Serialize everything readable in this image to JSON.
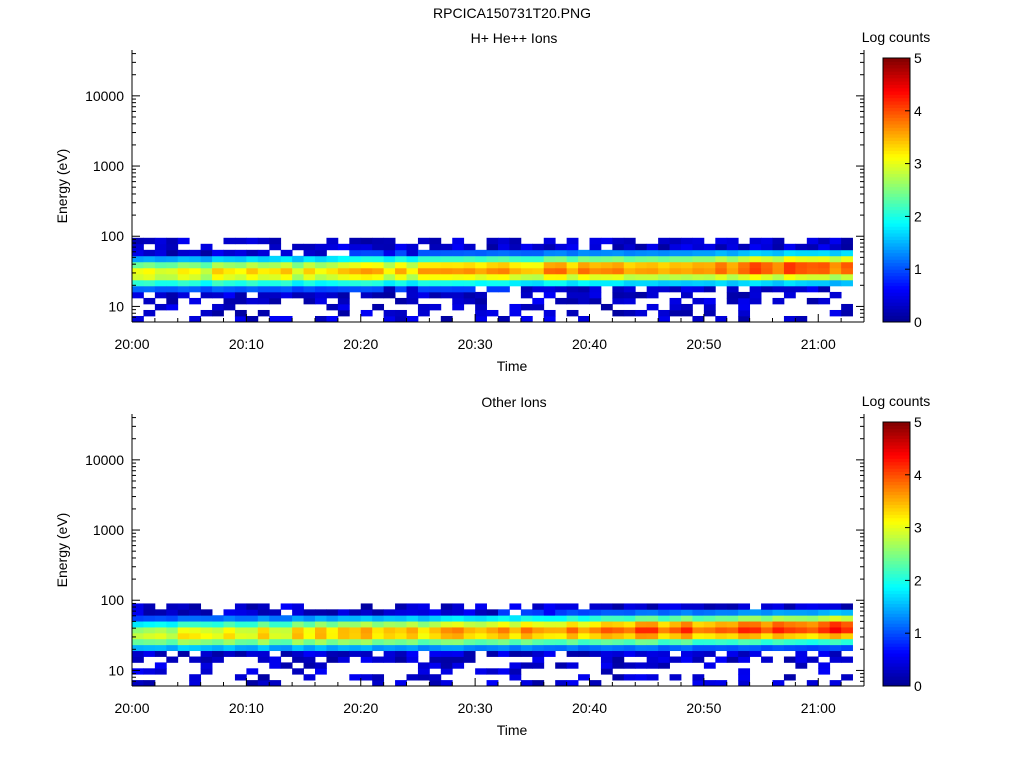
{
  "title": "RPCICA150731T20.PNG",
  "chart_data": [
    {
      "type": "heatmap",
      "title": "H+ He++ Ions",
      "xlabel": "Time",
      "ylabel": "Energy (eV)",
      "x_ticks": [
        "20:00",
        "20:10",
        "20:20",
        "20:30",
        "20:40",
        "20:50",
        "21:00"
      ],
      "y_ticks": [
        "10",
        "100",
        "1000",
        "10000"
      ],
      "y_scale": "log",
      "ylim": [
        6,
        45000
      ],
      "xlim": [
        "20:00",
        "21:04"
      ],
      "colorbar": {
        "label": "Log counts",
        "ticks": [
          "0",
          "1",
          "2",
          "3",
          "4",
          "5"
        ],
        "range": [
          0,
          5
        ]
      },
      "band_center_ev": [
        30,
        36
      ],
      "band_top_ev": 95,
      "band_bottom_ev": 6,
      "peak_log_counts": [
        3.0,
        4.1
      ],
      "colormap": [
        "#00008f",
        "#0000ff",
        "#0080ff",
        "#00ffff",
        "#80ff80",
        "#ffff00",
        "#ff8000",
        "#ff0000",
        "#800000"
      ]
    },
    {
      "type": "heatmap",
      "title": "Other Ions",
      "xlabel": "Time",
      "ylabel": "Energy (eV)",
      "x_ticks": [
        "20:00",
        "20:10",
        "20:20",
        "20:30",
        "20:40",
        "20:50",
        "21:00"
      ],
      "y_ticks": [
        "10",
        "100",
        "1000",
        "10000"
      ],
      "y_scale": "log",
      "ylim": [
        6,
        45000
      ],
      "xlim": [
        "20:00",
        "21:04"
      ],
      "colorbar": {
        "label": "Log counts",
        "ticks": [
          "0",
          "1",
          "2",
          "3",
          "4",
          "5"
        ],
        "range": [
          0,
          5
        ]
      },
      "band_center_ev": [
        32,
        40
      ],
      "band_top_ev": 90,
      "band_bottom_ev": 6,
      "peak_log_counts": [
        3.0,
        4.3
      ],
      "colormap": [
        "#00008f",
        "#0000ff",
        "#0080ff",
        "#00ffff",
        "#80ff80",
        "#ffff00",
        "#ff8000",
        "#ff0000",
        "#800000"
      ]
    }
  ]
}
